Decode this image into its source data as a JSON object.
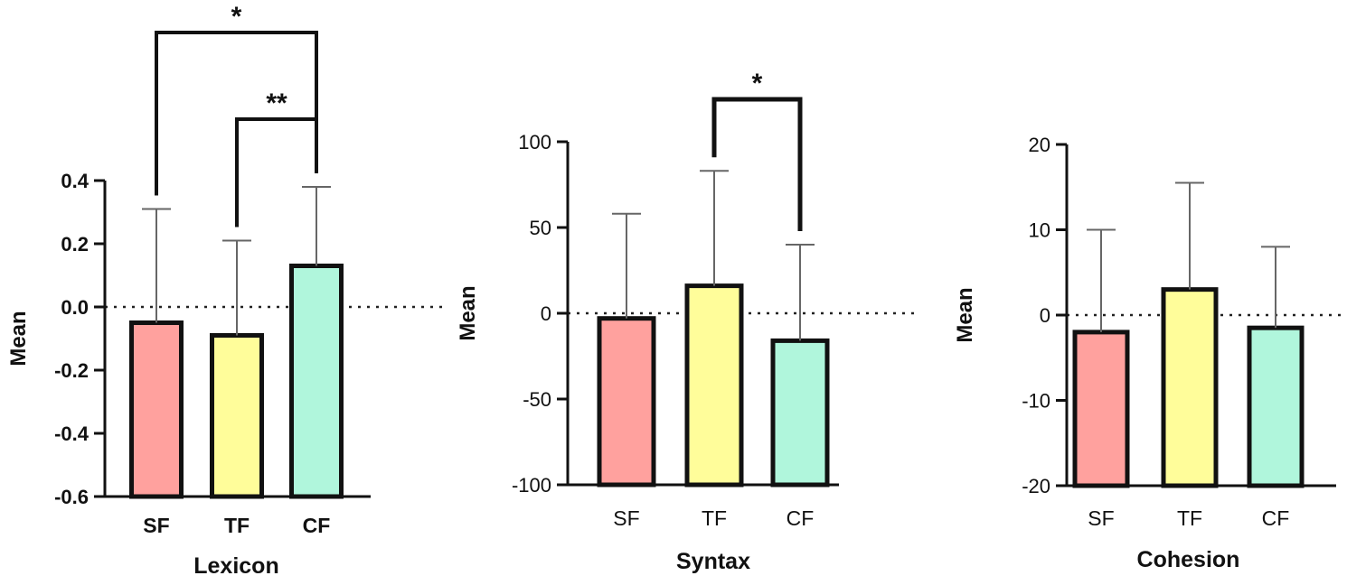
{
  "chart_data": [
    {
      "type": "bar",
      "xlabel": "Lexicon",
      "ylabel": "Mean",
      "ylim": [
        -0.6,
        0.4
      ],
      "yticks": [
        "0.4",
        "0.2",
        "0.0",
        "-0.2",
        "-0.4",
        "-0.6"
      ],
      "categories": [
        "SF",
        "TF",
        "CF"
      ],
      "values": [
        -0.05,
        -0.09,
        0.13
      ],
      "error_upper": [
        0.31,
        0.21,
        0.38
      ],
      "baseline": 0,
      "significance": [
        {
          "from": "SF",
          "to": "CF",
          "label": "*"
        },
        {
          "from": "TF",
          "to": "CF",
          "label": "**"
        }
      ]
    },
    {
      "type": "bar",
      "xlabel": "Syntax",
      "ylabel": "Mean",
      "ylim": [
        -100,
        100
      ],
      "yticks": [
        "100",
        "50",
        "0",
        "-50",
        "-100"
      ],
      "categories": [
        "SF",
        "TF",
        "CF"
      ],
      "values": [
        -3,
        16,
        -16
      ],
      "error_upper": [
        58,
        83,
        40
      ],
      "baseline": 0,
      "significance": [
        {
          "from": "TF",
          "to": "CF",
          "label": "*"
        }
      ]
    },
    {
      "type": "bar",
      "xlabel": "Cohesion",
      "ylabel": "Mean",
      "ylim": [
        -20,
        20
      ],
      "yticks": [
        "20",
        "10",
        "0",
        "-10",
        "-20"
      ],
      "categories": [
        "SF",
        "TF",
        "CF"
      ],
      "values": [
        -2,
        3,
        -1.5
      ],
      "error_upper": [
        10,
        15.5,
        8
      ],
      "baseline": 0,
      "significance": []
    }
  ],
  "colors": {
    "SF": "#FFA19E",
    "TF": "#FFFD9A",
    "CF": "#B0F6DC",
    "stroke": "#111111",
    "errorbar": "#666666"
  }
}
